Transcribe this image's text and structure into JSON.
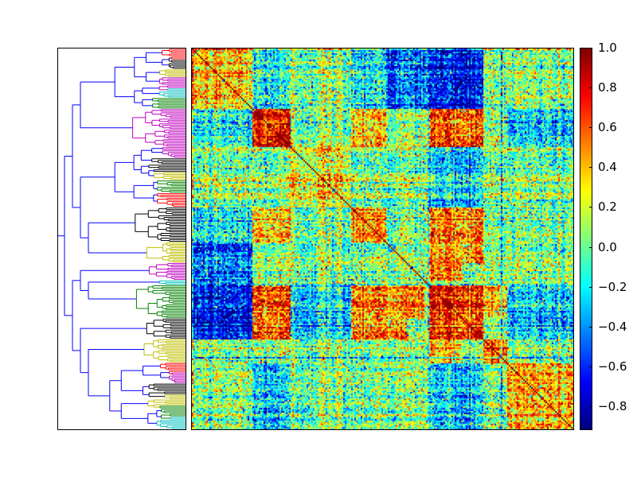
{
  "chart_data": {
    "type": "heatmap",
    "title": "",
    "xlabel": "",
    "ylabel": "",
    "matrix_kind": "correlation",
    "matrix_size": 240,
    "value_range": [
      -0.92,
      1.0
    ],
    "diagonal_value": 1.0,
    "colormap": "jet",
    "colormap_stops": [
      "#00007f",
      "#0000ff",
      "#007fff",
      "#00ffff",
      "#7fff7f",
      "#ffff00",
      "#ff7f00",
      "#ff0000",
      "#7f0000"
    ],
    "colorbar": {
      "ticks": [
        1.0,
        0.8,
        0.6,
        0.4,
        0.2,
        0.0,
        -0.2,
        -0.4,
        -0.6,
        -0.8
      ],
      "tick_labels": [
        "1.0",
        "0.8",
        "0.6",
        "0.4",
        "0.2",
        "0.0",
        "−0.2",
        "−0.4",
        "−0.6",
        "−0.8"
      ]
    },
    "clusters": [
      {
        "id": "A",
        "start": 0,
        "end": 38,
        "dendro_color": "#0000ff",
        "leaf_colors": [
          "#ff0000",
          "#000000",
          "#bfbf00",
          "#bf00bf",
          "#00bfbf",
          "#008000"
        ]
      },
      {
        "id": "B",
        "start": 38,
        "end": 62,
        "dendro_color": "#bf00bf",
        "leaf_colors": [
          "#bf00bf"
        ]
      },
      {
        "id": "C",
        "start": 62,
        "end": 100,
        "dendro_color": "#0000ff",
        "leaf_colors": [
          "#bf00bf",
          "#000000",
          "#bfbf00",
          "#008000",
          "#ff0000"
        ]
      },
      {
        "id": "D",
        "start": 100,
        "end": 122,
        "dendro_color": "#000000",
        "leaf_colors": [
          "#000000"
        ]
      },
      {
        "id": "E",
        "start": 122,
        "end": 135,
        "dendro_color": "#bfbf00",
        "leaf_colors": [
          "#bfbf00"
        ]
      },
      {
        "id": "F",
        "start": 135,
        "end": 146,
        "dendro_color": "#bf00bf",
        "leaf_colors": [
          "#bf00bf"
        ]
      },
      {
        "id": "G",
        "start": 146,
        "end": 149,
        "dendro_color": "#00bfbf",
        "leaf_colors": [
          "#00bfbf"
        ]
      },
      {
        "id": "H",
        "start": 149,
        "end": 170,
        "dendro_color": "#008000",
        "leaf_colors": [
          "#008000"
        ]
      },
      {
        "id": "I",
        "start": 170,
        "end": 183,
        "dendro_color": "#000000",
        "leaf_colors": [
          "#000000"
        ]
      },
      {
        "id": "J",
        "start": 183,
        "end": 198,
        "dendro_color": "#bfbf00",
        "leaf_colors": [
          "#bfbf00"
        ]
      },
      {
        "id": "K",
        "start": 198,
        "end": 240,
        "dendro_color": "#0000ff",
        "leaf_colors": [
          "#ff0000",
          "#bf00bf",
          "#000000",
          "#bfbf00",
          "#008000",
          "#00bfbf"
        ]
      }
    ],
    "block_correlations": [
      [
        "A",
        "A",
        0.35
      ],
      [
        "B",
        "B",
        0.75
      ],
      [
        "C",
        "C",
        0.3
      ],
      [
        "H",
        "H",
        0.75
      ],
      [
        "I",
        "I",
        0.7
      ],
      [
        "K",
        "K",
        0.4
      ],
      [
        "A",
        "B",
        -0.2
      ],
      [
        "A",
        "H",
        -0.7
      ],
      [
        "A",
        "I",
        -0.7
      ],
      [
        "A",
        "D",
        -0.2
      ],
      [
        "B",
        "H",
        0.6
      ],
      [
        "B",
        "I",
        0.6
      ],
      [
        "B",
        "D",
        0.4
      ],
      [
        "D",
        "H",
        0.55
      ],
      [
        "D",
        "I",
        0.55
      ],
      [
        "D",
        "D",
        0.55
      ],
      [
        "H",
        "I",
        0.7
      ],
      [
        "E",
        "H",
        0.5
      ],
      [
        "E",
        "I",
        0.5
      ],
      [
        "F",
        "H",
        0.5
      ],
      [
        "A",
        "E",
        -0.5
      ],
      [
        "A",
        "F",
        -0.5
      ],
      [
        "A",
        "G",
        -0.4
      ],
      [
        "C",
        "H",
        -0.25
      ],
      [
        "C",
        "I",
        -0.25
      ],
      [
        "K",
        "H",
        -0.3
      ],
      [
        "K",
        "I",
        -0.3
      ],
      [
        "B",
        "K",
        -0.3
      ],
      [
        "J",
        "H",
        0.35
      ],
      [
        "J",
        "J",
        0.6
      ]
    ]
  }
}
